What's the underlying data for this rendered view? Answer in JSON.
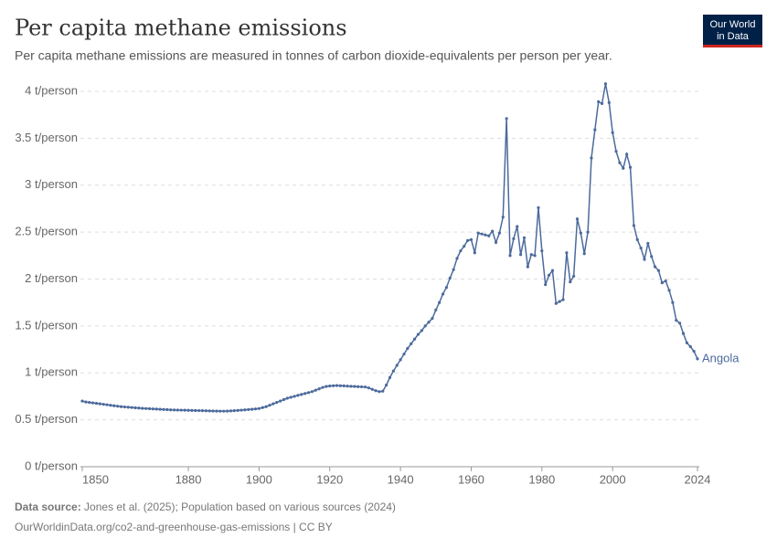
{
  "chart_data": {
    "type": "line",
    "title": "Per capita methane emissions",
    "subtitle": "Per capita methane emissions are measured in tonnes of carbon dioxide-equivalents per person per year.",
    "source_label": "Data source:",
    "source_text": "Jones et al. (2025); Population based on various sources (2024)",
    "footer": "OurWorldinData.org/co2-and-greenhouse-gas-emissions | CC BY",
    "logo": [
      "Our World",
      "in Data"
    ],
    "x": [
      1850,
      1851,
      1852,
      1853,
      1854,
      1855,
      1856,
      1857,
      1858,
      1859,
      1860,
      1861,
      1862,
      1863,
      1864,
      1865,
      1866,
      1867,
      1868,
      1869,
      1870,
      1871,
      1872,
      1873,
      1874,
      1875,
      1876,
      1877,
      1878,
      1879,
      1880,
      1881,
      1882,
      1883,
      1884,
      1885,
      1886,
      1887,
      1888,
      1889,
      1890,
      1891,
      1892,
      1893,
      1894,
      1895,
      1896,
      1897,
      1898,
      1899,
      1900,
      1901,
      1902,
      1903,
      1904,
      1905,
      1906,
      1907,
      1908,
      1909,
      1910,
      1911,
      1912,
      1913,
      1914,
      1915,
      1916,
      1917,
      1918,
      1919,
      1920,
      1921,
      1922,
      1923,
      1924,
      1925,
      1926,
      1927,
      1928,
      1929,
      1930,
      1931,
      1932,
      1933,
      1934,
      1935,
      1936,
      1937,
      1938,
      1939,
      1940,
      1941,
      1942,
      1943,
      1944,
      1945,
      1946,
      1947,
      1948,
      1949,
      1950,
      1951,
      1952,
      1953,
      1954,
      1955,
      1956,
      1957,
      1958,
      1959,
      1960,
      1961,
      1962,
      1963,
      1964,
      1965,
      1966,
      1967,
      1968,
      1969,
      1970,
      1971,
      1972,
      1973,
      1974,
      1975,
      1976,
      1977,
      1978,
      1979,
      1980,
      1981,
      1982,
      1983,
      1984,
      1985,
      1986,
      1987,
      1988,
      1989,
      1990,
      1991,
      1992,
      1993,
      1994,
      1995,
      1996,
      1997,
      1998,
      1999,
      2000,
      2001,
      2002,
      2003,
      2004,
      2005,
      2006,
      2007,
      2008,
      2009,
      2010,
      2011,
      2012,
      2013,
      2014,
      2015,
      2016,
      2017,
      2018,
      2019,
      2020,
      2021,
      2022,
      2023,
      2024
    ],
    "series": [
      {
        "name": "Angola",
        "color": "#4c6a9c",
        "values": [
          0.7,
          0.69,
          0.685,
          0.68,
          0.675,
          0.67,
          0.665,
          0.66,
          0.655,
          0.65,
          0.645,
          0.64,
          0.637,
          0.634,
          0.631,
          0.628,
          0.625,
          0.622,
          0.62,
          0.618,
          0.616,
          0.614,
          0.612,
          0.61,
          0.608,
          0.606,
          0.605,
          0.604,
          0.603,
          0.602,
          0.601,
          0.6,
          0.599,
          0.598,
          0.597,
          0.596,
          0.595,
          0.594,
          0.593,
          0.592,
          0.592,
          0.593,
          0.595,
          0.597,
          0.6,
          0.603,
          0.606,
          0.609,
          0.612,
          0.616,
          0.62,
          0.63,
          0.64,
          0.655,
          0.67,
          0.685,
          0.7,
          0.715,
          0.73,
          0.74,
          0.75,
          0.76,
          0.77,
          0.78,
          0.79,
          0.8,
          0.815,
          0.83,
          0.845,
          0.855,
          0.86,
          0.863,
          0.865,
          0.863,
          0.861,
          0.859,
          0.857,
          0.855,
          0.853,
          0.851,
          0.85,
          0.84,
          0.825,
          0.81,
          0.8,
          0.805,
          0.87,
          0.95,
          1.02,
          1.08,
          1.14,
          1.2,
          1.26,
          1.31,
          1.36,
          1.41,
          1.45,
          1.5,
          1.54,
          1.58,
          1.67,
          1.75,
          1.84,
          1.91,
          2.01,
          2.1,
          2.22,
          2.3,
          2.35,
          2.41,
          2.42,
          2.28,
          2.49,
          2.48,
          2.47,
          2.46,
          2.51,
          2.39,
          2.49,
          2.66,
          3.71,
          2.25,
          2.43,
          2.56,
          2.26,
          2.44,
          2.13,
          2.26,
          2.25,
          2.76,
          2.3,
          1.94,
          2.04,
          2.09,
          1.74,
          1.76,
          1.78,
          2.28,
          1.97,
          2.03,
          2.64,
          2.49,
          2.27,
          2.5,
          3.29,
          3.59,
          3.89,
          3.87,
          4.08,
          3.88,
          3.56,
          3.36,
          3.24,
          3.18,
          3.33,
          3.19,
          2.57,
          2.42,
          2.33,
          2.21,
          2.38,
          2.24,
          2.13,
          2.09,
          1.96,
          1.98,
          1.88,
          1.75,
          1.56,
          1.53,
          1.42,
          1.32,
          1.28,
          1.23,
          1.15
        ]
      }
    ],
    "xlim": [
      1850,
      2024
    ],
    "xticks": [
      1850,
      1880,
      1900,
      1920,
      1940,
      1960,
      1980,
      2000,
      2024
    ],
    "ylim": [
      0,
      4
    ],
    "yticks": [
      {
        "value": 0,
        "label": "0 t/person"
      },
      {
        "value": 0.5,
        "label": "0.5 t/person"
      },
      {
        "value": 1,
        "label": "1 t/person"
      },
      {
        "value": 1.5,
        "label": "1.5 t/person"
      },
      {
        "value": 2,
        "label": "2 t/person"
      },
      {
        "value": 2.5,
        "label": "2.5 t/person"
      },
      {
        "value": 3,
        "label": "3 t/person"
      },
      {
        "value": 3.5,
        "label": "3.5 t/person"
      },
      {
        "value": 4,
        "label": "4 t/person"
      }
    ],
    "grid": true
  }
}
